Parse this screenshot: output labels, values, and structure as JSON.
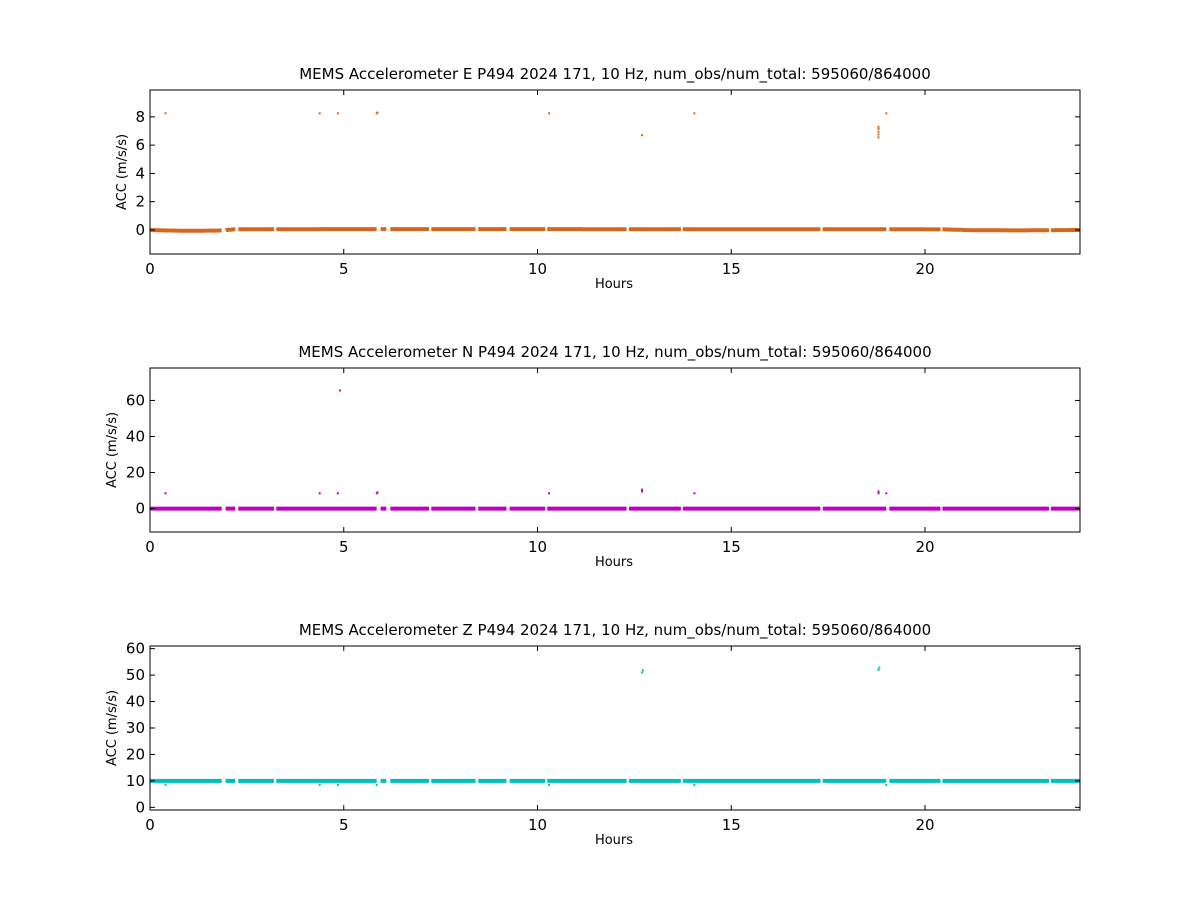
{
  "chart_data": [
    {
      "type": "scatter",
      "title": "MEMS Accelerometer E P494 2024 171, 10 Hz, num_obs/num_total: 595060/864000",
      "xlabel": "Hours",
      "ylabel": "ACC (m/s/s)",
      "xlim": [
        0,
        24
      ],
      "ylim": [
        -1.7,
        9.9
      ],
      "xticks": [
        0,
        5,
        10,
        15,
        20
      ],
      "xtick_labels": [
        "0",
        "5",
        "10",
        "15",
        "20"
      ],
      "yticks": [
        0,
        2,
        4,
        6,
        8
      ],
      "ytick_labels": [
        "0",
        "2",
        "4",
        "6",
        "8"
      ],
      "color": "#d2691e",
      "baseline": [
        [
          0,
          0.0
        ],
        [
          0.3,
          -0.03
        ],
        [
          1.0,
          -0.06
        ],
        [
          1.8,
          -0.04
        ],
        [
          2.2,
          0.05
        ],
        [
          5,
          0.06
        ],
        [
          10,
          0.06
        ],
        [
          15,
          0.05
        ],
        [
          19,
          0.05
        ],
        [
          20.5,
          0.04
        ],
        [
          21.3,
          -0.02
        ],
        [
          22.5,
          -0.03
        ],
        [
          24,
          0.0
        ]
      ],
      "gaps": [
        [
          1.85,
          1.95
        ],
        [
          2.2,
          2.28
        ],
        [
          3.2,
          3.26
        ],
        [
          5.85,
          5.95
        ],
        [
          6.1,
          6.2
        ],
        [
          7.2,
          7.26
        ],
        [
          8.4,
          8.47
        ],
        [
          9.2,
          9.28
        ],
        [
          10.2,
          10.25
        ],
        [
          12.3,
          12.36
        ],
        [
          13.7,
          13.75
        ],
        [
          17.3,
          17.36
        ],
        [
          19.0,
          19.08
        ],
        [
          20.4,
          20.45
        ],
        [
          23.2,
          23.25
        ]
      ],
      "spikes": [
        [
          0.4,
          8.25
        ],
        [
          4.38,
          8.25
        ],
        [
          4.85,
          8.25
        ],
        [
          5.85,
          8.25
        ],
        [
          5.87,
          8.3
        ],
        [
          10.3,
          8.25
        ],
        [
          12.7,
          6.7
        ],
        [
          14.05,
          8.25
        ],
        [
          18.8,
          6.55
        ],
        [
          18.8,
          6.75
        ],
        [
          18.8,
          6.95
        ],
        [
          18.8,
          7.15
        ],
        [
          18.8,
          7.3
        ],
        [
          19.0,
          8.25
        ]
      ]
    },
    {
      "type": "scatter",
      "title": "MEMS Accelerometer N P494 2024 171, 10 Hz, num_obs/num_total: 595060/864000",
      "xlabel": "Hours",
      "ylabel": "ACC (m/s/s)",
      "xlim": [
        0,
        24
      ],
      "ylim": [
        -13,
        78
      ],
      "xticks": [
        0,
        5,
        10,
        15,
        20
      ],
      "xtick_labels": [
        "0",
        "5",
        "10",
        "15",
        "20"
      ],
      "yticks": [
        0,
        20,
        40,
        60
      ],
      "ytick_labels": [
        "0",
        "20",
        "40",
        "60"
      ],
      "color": "#bf00bf",
      "baseline": [
        [
          0,
          0.0
        ],
        [
          24,
          0.0
        ]
      ],
      "gaps": [
        [
          1.85,
          1.95
        ],
        [
          2.2,
          2.28
        ],
        [
          3.2,
          3.26
        ],
        [
          5.85,
          5.95
        ],
        [
          6.1,
          6.2
        ],
        [
          7.2,
          7.26
        ],
        [
          8.4,
          8.47
        ],
        [
          9.2,
          9.28
        ],
        [
          10.2,
          10.25
        ],
        [
          12.3,
          12.36
        ],
        [
          13.7,
          13.75
        ],
        [
          17.3,
          17.36
        ],
        [
          19.0,
          19.08
        ],
        [
          20.4,
          20.45
        ],
        [
          23.2,
          23.25
        ]
      ],
      "spikes": [
        [
          0.4,
          8.5
        ],
        [
          4.38,
          8.5
        ],
        [
          4.85,
          8.5
        ],
        [
          4.9,
          65.5
        ],
        [
          5.85,
          8.5
        ],
        [
          5.87,
          9.0
        ],
        [
          10.3,
          8.5
        ],
        [
          12.7,
          9.5
        ],
        [
          12.7,
          10.5
        ],
        [
          14.05,
          8.5
        ],
        [
          18.8,
          8.5
        ],
        [
          18.8,
          9.5
        ],
        [
          19.0,
          8.5
        ]
      ]
    },
    {
      "type": "scatter",
      "title": "MEMS Accelerometer Z P494 2024 171, 10 Hz, num_obs/num_total: 595060/864000",
      "xlabel": "Hours",
      "ylabel": "ACC (m/s/s)",
      "xlim": [
        0,
        24
      ],
      "ylim": [
        -1,
        61
      ],
      "xticks": [
        0,
        5,
        10,
        15,
        20
      ],
      "xtick_labels": [
        "0",
        "5",
        "10",
        "15",
        "20"
      ],
      "yticks": [
        0,
        10,
        20,
        30,
        40,
        50,
        60
      ],
      "ytick_labels": [
        "0",
        "10",
        "20",
        "30",
        "40",
        "50",
        "60"
      ],
      "color": "#00bfbf",
      "baseline": [
        [
          0,
          10.0
        ],
        [
          24,
          10.0
        ]
      ],
      "gaps": [
        [
          1.85,
          1.95
        ],
        [
          2.2,
          2.28
        ],
        [
          3.2,
          3.26
        ],
        [
          5.85,
          5.95
        ],
        [
          6.1,
          6.2
        ],
        [
          7.2,
          7.26
        ],
        [
          8.4,
          8.47
        ],
        [
          9.2,
          9.28
        ],
        [
          10.2,
          10.25
        ],
        [
          12.3,
          12.36
        ],
        [
          13.7,
          13.75
        ],
        [
          17.3,
          17.36
        ],
        [
          19.0,
          19.08
        ],
        [
          20.4,
          20.45
        ],
        [
          23.2,
          23.25
        ]
      ],
      "spikes": [
        [
          0.4,
          8.5
        ],
        [
          4.38,
          8.5
        ],
        [
          4.85,
          8.5
        ],
        [
          5.85,
          8.5
        ],
        [
          10.3,
          8.5
        ],
        [
          12.7,
          51.0
        ],
        [
          12.72,
          51.8
        ],
        [
          14.05,
          8.5
        ],
        [
          18.8,
          52.0
        ],
        [
          18.82,
          52.8
        ],
        [
          19.0,
          8.5
        ]
      ]
    }
  ]
}
